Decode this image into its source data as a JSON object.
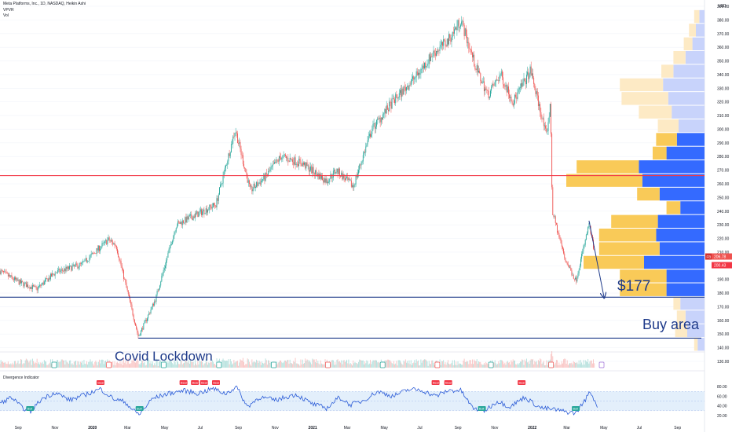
{
  "legend": {
    "symbol_line": "Meta Platforms, Inc., 1D, NASDAQ, Heikin Ashi",
    "indicator_1": "VPVR",
    "indicator_2": "Vol"
  },
  "price_axis": {
    "unit": "USD",
    "ticks": [
      "390.00",
      "380.00",
      "370.00",
      "360.00",
      "350.00",
      "340.00",
      "330.00",
      "320.00",
      "310.00",
      "300.00",
      "290.00",
      "280.00",
      "270.00",
      "260.00",
      "250.00",
      "240.00",
      "230.00",
      "220.00",
      "210.00",
      "200.00",
      "190.00",
      "180.00",
      "170.00",
      "160.00",
      "150.00",
      "140.00",
      "130.00"
    ],
    "last_price_label": "206.78",
    "second_price_label": "200.43",
    "ticker_badge": "FB"
  },
  "time_axis": [
    "Sep",
    "Nov",
    "2020",
    "Mar",
    "May",
    "Jul",
    "Sep",
    "Nov",
    "2021",
    "Mar",
    "May",
    "Jul",
    "Sep",
    "Nov",
    "2022",
    "Mar",
    "May",
    "Jul",
    "Sep"
  ],
  "oscillator": {
    "title": "Divergence Indicator",
    "ticks": [
      "80.00",
      "60.00",
      "40.00",
      "20.00"
    ],
    "bull_label": "Bull",
    "bear_label": "Bear"
  },
  "annotations": {
    "covid": "Covid Lockdown",
    "target": "$177",
    "buy_area": "Buy area"
  },
  "colors": {
    "up": "#26a69a",
    "down": "#ef5350",
    "vp_up_inside": "#2962ff",
    "vp_down_inside": "#f9c74f",
    "vp_up_outside": "#c5d1fb",
    "vp_down_outside": "#fde9c2",
    "hline_red": "#f23645",
    "hline_blue": "#1e3a8a",
    "oscillator_line": "#2a5bd7",
    "oscillator_band": "#e3effb"
  },
  "chart_data": {
    "type": "candlestick",
    "y_axis_range": [
      130,
      390
    ],
    "x_axis_range": [
      "2019-08-01",
      "2022-10-15"
    ],
    "price_path": [
      [
        "2019-08-01",
        196
      ],
      [
        "2019-09-01",
        188
      ],
      [
        "2019-10-01",
        183
      ],
      [
        "2019-11-01",
        195
      ],
      [
        "2019-12-15",
        201
      ],
      [
        "2020-01-28",
        219
      ],
      [
        "2020-02-10",
        215
      ],
      [
        "2020-03-18",
        148
      ],
      [
        "2020-04-15",
        175
      ],
      [
        "2020-05-20",
        230
      ],
      [
        "2020-06-25",
        238
      ],
      [
        "2020-07-25",
        245
      ],
      [
        "2020-08-26",
        300
      ],
      [
        "2020-09-20",
        255
      ],
      [
        "2020-10-15",
        265
      ],
      [
        "2020-11-10",
        280
      ],
      [
        "2020-12-15",
        275
      ],
      [
        "2021-01-25",
        262
      ],
      [
        "2021-02-10",
        270
      ],
      [
        "2021-03-10",
        258
      ],
      [
        "2021-04-10",
        300
      ],
      [
        "2021-05-15",
        320
      ],
      [
        "2021-06-25",
        340
      ],
      [
        "2021-07-20",
        355
      ],
      [
        "2021-08-15",
        365
      ],
      [
        "2021-09-05",
        380
      ],
      [
        "2021-09-30",
        345
      ],
      [
        "2021-10-20",
        325
      ],
      [
        "2021-11-10",
        340
      ],
      [
        "2021-12-01",
        320
      ],
      [
        "2021-12-30",
        343
      ],
      [
        "2022-01-25",
        295
      ],
      [
        "2022-02-01",
        318
      ],
      [
        "2022-02-04",
        240
      ],
      [
        "2022-02-25",
        205
      ],
      [
        "2022-03-15",
        189
      ],
      [
        "2022-04-06",
        230
      ],
      [
        "2022-04-15",
        210
      ]
    ],
    "horizontal_lines": [
      {
        "price": 266,
        "color": "red"
      },
      {
        "price": 177,
        "color": "blue"
      },
      {
        "price": 147,
        "color": "blue"
      }
    ],
    "projection_arrow": {
      "from": [
        "2022-04-06",
        233
      ],
      "to": [
        "2022-05-01",
        177
      ]
    },
    "volume_profile": [
      {
        "price": 382.5,
        "up": 0.03,
        "down": 0.03,
        "in_value_area": false
      },
      {
        "price": 372.5,
        "up": 0.05,
        "down": 0.04,
        "in_value_area": false
      },
      {
        "price": 362.5,
        "up": 0.07,
        "down": 0.05,
        "in_value_area": false
      },
      {
        "price": 352.5,
        "up": 0.11,
        "down": 0.07,
        "in_value_area": false
      },
      {
        "price": 342.5,
        "up": 0.18,
        "down": 0.07,
        "in_value_area": false
      },
      {
        "price": 332.5,
        "up": 0.24,
        "down": 0.25,
        "in_value_area": false
      },
      {
        "price": 322.5,
        "up": 0.21,
        "down": 0.27,
        "in_value_area": false
      },
      {
        "price": 312.5,
        "up": 0.19,
        "down": 0.19,
        "in_value_area": false
      },
      {
        "price": 302.5,
        "up": 0.15,
        "down": 0.12,
        "in_value_area": false
      },
      {
        "price": 292.5,
        "up": 0.16,
        "down": 0.12,
        "in_value_area": true
      },
      {
        "price": 282.5,
        "up": 0.22,
        "down": 0.08,
        "in_value_area": true
      },
      {
        "price": 272.5,
        "up": 0.38,
        "down": 0.36,
        "in_value_area": true
      },
      {
        "price": 262.5,
        "up": 0.36,
        "down": 0.44,
        "in_value_area": true
      },
      {
        "price": 252.5,
        "up": 0.26,
        "down": 0.13,
        "in_value_area": true
      },
      {
        "price": 242.5,
        "up": 0.14,
        "down": 0.08,
        "in_value_area": true
      },
      {
        "price": 232.5,
        "up": 0.27,
        "down": 0.27,
        "in_value_area": true
      },
      {
        "price": 222.5,
        "up": 0.28,
        "down": 0.33,
        "in_value_area": true
      },
      {
        "price": 212.5,
        "up": 0.26,
        "down": 0.35,
        "in_value_area": true
      },
      {
        "price": 202.5,
        "up": 0.35,
        "down": 0.35,
        "in_value_area": true
      },
      {
        "price": 192.5,
        "up": 0.22,
        "down": 0.27,
        "in_value_area": true
      },
      {
        "price": 182.5,
        "up": 0.22,
        "down": 0.27,
        "in_value_area": true
      },
      {
        "price": 172.5,
        "up": 0.14,
        "down": 0.04,
        "in_value_area": false
      },
      {
        "price": 162.5,
        "up": 0.11,
        "down": 0.05,
        "in_value_area": false
      },
      {
        "price": 152.5,
        "up": 0.1,
        "down": 0.07,
        "in_value_area": false
      },
      {
        "price": 142.5,
        "up": 0.04,
        "down": 0.02,
        "in_value_area": false
      }
    ],
    "oscillator_range": [
      15,
      90
    ],
    "oscillator_path": [
      [
        "2019-08-01",
        45
      ],
      [
        "2019-08-20",
        58
      ],
      [
        "2019-09-05",
        38
      ],
      [
        "2019-09-20",
        28
      ],
      [
        "2019-10-10",
        55
      ],
      [
        "2019-11-01",
        68
      ],
      [
        "2019-11-25",
        52
      ],
      [
        "2019-12-20",
        63
      ],
      [
        "2020-01-15",
        75
      ],
      [
        "2020-02-05",
        55
      ],
      [
        "2020-02-25",
        48
      ],
      [
        "2020-03-10",
        30
      ],
      [
        "2020-03-20",
        22
      ],
      [
        "2020-04-10",
        55
      ],
      [
        "2020-05-05",
        65
      ],
      [
        "2020-06-01",
        72
      ],
      [
        "2020-06-25",
        66
      ],
      [
        "2020-07-20",
        76
      ],
      [
        "2020-08-10",
        65
      ],
      [
        "2020-08-28",
        80
      ],
      [
        "2020-09-15",
        38
      ],
      [
        "2020-10-05",
        58
      ],
      [
        "2020-11-01",
        52
      ],
      [
        "2020-12-05",
        64
      ],
      [
        "2021-01-01",
        44
      ],
      [
        "2021-01-25",
        35
      ],
      [
        "2021-02-15",
        58
      ],
      [
        "2021-03-05",
        42
      ],
      [
        "2021-03-25",
        50
      ],
      [
        "2021-04-20",
        70
      ],
      [
        "2021-05-15",
        60
      ],
      [
        "2021-06-10",
        74
      ],
      [
        "2021-07-01",
        73
      ],
      [
        "2021-07-25",
        60
      ],
      [
        "2021-08-15",
        72
      ],
      [
        "2021-09-05",
        72
      ],
      [
        "2021-09-25",
        35
      ],
      [
        "2021-10-15",
        30
      ],
      [
        "2021-11-05",
        50
      ],
      [
        "2021-11-25",
        38
      ],
      [
        "2021-12-20",
        58
      ],
      [
        "2022-01-15",
        36
      ],
      [
        "2022-02-10",
        32
      ],
      [
        "2022-02-25",
        28
      ],
      [
        "2022-03-15",
        25
      ],
      [
        "2022-04-01",
        55
      ],
      [
        "2022-04-08",
        70
      ],
      [
        "2022-04-20",
        40
      ]
    ],
    "oscillator_signals": [
      {
        "date": "2019-09-20",
        "type": "bull"
      },
      {
        "date": "2020-01-15",
        "type": "bear"
      },
      {
        "date": "2020-03-20",
        "type": "bull"
      },
      {
        "date": "2020-06-01",
        "type": "bear"
      },
      {
        "date": "2020-06-20",
        "type": "bear"
      },
      {
        "date": "2020-07-05",
        "type": "bear"
      },
      {
        "date": "2020-07-25",
        "type": "bear"
      },
      {
        "date": "2021-07-25",
        "type": "bear"
      },
      {
        "date": "2021-08-15",
        "type": "bear"
      },
      {
        "date": "2021-10-10",
        "type": "bull"
      },
      {
        "date": "2021-12-15",
        "type": "bear"
      },
      {
        "date": "2022-03-15",
        "type": "bull"
      }
    ],
    "event_markers": [
      {
        "date": "2019-07-25",
        "type": "earnings"
      },
      {
        "date": "2019-10-30",
        "type": "dividend"
      },
      {
        "date": "2020-01-29",
        "type": "earnings"
      },
      {
        "date": "2020-04-29",
        "type": "dividend"
      },
      {
        "date": "2020-07-30",
        "type": "dividend"
      },
      {
        "date": "2020-10-29",
        "type": "dividend"
      },
      {
        "date": "2021-01-27",
        "type": "earnings"
      },
      {
        "date": "2021-04-28",
        "type": "dividend"
      },
      {
        "date": "2021-07-28",
        "type": "earnings"
      },
      {
        "date": "2021-10-25",
        "type": "dividend"
      },
      {
        "date": "2022-02-02",
        "type": "earnings"
      },
      {
        "date": "2022-04-27",
        "type": "upcoming"
      }
    ]
  }
}
